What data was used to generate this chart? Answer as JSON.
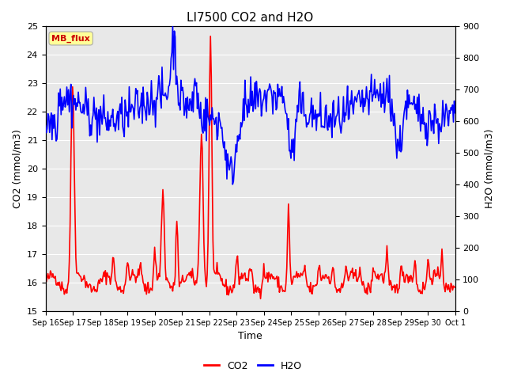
{
  "title": "LI7500 CO2 and H2O",
  "xlabel": "Time",
  "ylabel_left": "CO2 (mmol/m3)",
  "ylabel_right": "H2O (mmol/m3)",
  "ylim_left": [
    15.0,
    25.0
  ],
  "ylim_right": [
    0,
    900
  ],
  "yticks_left": [
    15.0,
    16.0,
    17.0,
    18.0,
    19.0,
    20.0,
    21.0,
    22.0,
    23.0,
    24.0,
    25.0
  ],
  "yticks_right": [
    0,
    100,
    200,
    300,
    400,
    500,
    600,
    700,
    800,
    900
  ],
  "xtick_labels": [
    "Sep 16",
    "Sep 17",
    "Sep 18",
    "Sep 19",
    "Sep 20",
    "Sep 21",
    "Sep 22",
    "Sep 23",
    "Sep 24",
    "Sep 25",
    "Sep 26",
    "Sep 27",
    "Sep 28",
    "Sep 29",
    "Sep 30",
    "Oct 1"
  ],
  "co2_color": "#ff0000",
  "h2o_color": "#0000ff",
  "plot_bg_color": "#e8e8e8",
  "fig_bg_color": "#ffffff",
  "annotation_text": "MB_flux",
  "annotation_bg": "#ffff99",
  "annotation_border": "#aaaaaa",
  "grid_color": "#ffffff",
  "legend_co2": "CO2",
  "legend_h2o": "H2O",
  "line_width": 1.2,
  "num_points": 500
}
